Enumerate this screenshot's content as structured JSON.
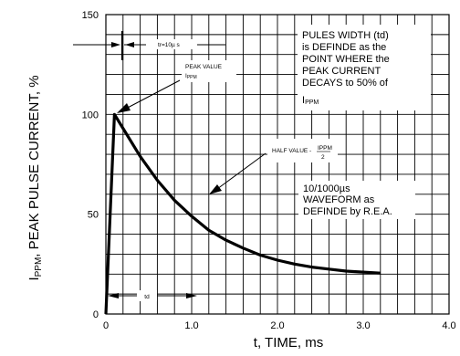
{
  "chart_data": {
    "type": "line",
    "xlabel": "t, TIME, ms",
    "ylabel": {
      "prefix": "I",
      "sub": "PPM",
      "suffix": ", PEAK PULSE CURRENT, %"
    },
    "xlim": [
      0,
      4.0
    ],
    "ylim": [
      0,
      150
    ],
    "x_tick_labels": [
      {
        "value": 0,
        "label": "0"
      },
      {
        "value": 1.0,
        "label": "1.0"
      },
      {
        "value": 2.0,
        "label": "2.0"
      },
      {
        "value": 3.0,
        "label": "3.0"
      },
      {
        "value": 4.0,
        "label": "4.0"
      }
    ],
    "y_tick_labels": [
      {
        "value": 0,
        "label": "0"
      },
      {
        "value": 50,
        "label": "50"
      },
      {
        "value": 100,
        "label": "100"
      },
      {
        "value": 150,
        "label": "150"
      }
    ],
    "grid": true,
    "series": [
      {
        "points": [
          [
            0,
            0
          ],
          [
            0.1,
            100
          ],
          [
            0.2,
            93
          ],
          [
            0.4,
            79
          ],
          [
            0.6,
            67
          ],
          [
            0.8,
            57
          ],
          [
            1.0,
            49
          ],
          [
            1.2,
            42
          ],
          [
            1.4,
            37
          ],
          [
            1.6,
            33
          ],
          [
            1.8,
            29.5
          ],
          [
            2.0,
            27
          ],
          [
            2.2,
            25
          ],
          [
            2.4,
            23.5
          ],
          [
            2.6,
            22.5
          ],
          [
            2.8,
            21.5
          ],
          [
            3.0,
            21
          ],
          [
            3.2,
            20.5
          ]
        ]
      }
    ],
    "annotations": {
      "pulse_width_note": [
        "PULES WIDTH (td)",
        "is DEFINDE as the",
        "POINT WHERE the",
        "PEAK CURRENT",
        "DECAYS to 50% of"
      ],
      "pulse_width_note_last": {
        "prefix": "I",
        "sub": "PPM"
      },
      "waveform_note": [
        "10/1000µs",
        "WAVEFORM as",
        "DEFINDE by R.E.A."
      ],
      "rise_time": "tr=10µ s",
      "peak_value": {
        "line1": "PEAK VALUE",
        "line2_prefix": "I",
        "line2_sub": "PPM"
      },
      "half_value": {
        "text": "HALF VALUE - ",
        "numerator": "IPPM",
        "denominator": "2"
      },
      "td_label": "td"
    }
  }
}
